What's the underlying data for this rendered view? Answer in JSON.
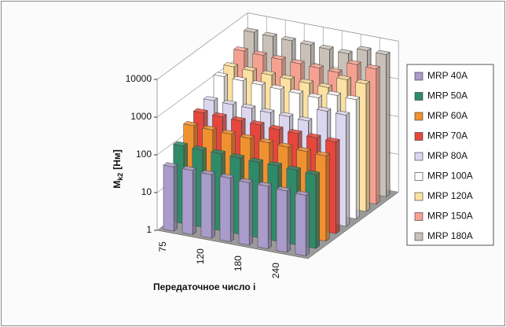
{
  "chart_data": {
    "type": "bar3d",
    "y_label": {
      "main": "M",
      "sub": "k2",
      "unit": "[Нм]"
    },
    "x_label": "Передаточное число i",
    "categories": [
      "75",
      null,
      "120",
      null,
      "180",
      null,
      "240",
      null
    ],
    "log_scale": true,
    "ylim": [
      1,
      10000
    ],
    "yticks": [
      1,
      10,
      100,
      1000,
      10000
    ],
    "grid": true,
    "legend": "right",
    "series": [
      {
        "name": "MRP 40A",
        "color": "#a99ccb",
        "values": [
          50,
          50,
          48,
          48,
          45,
          45,
          42,
          40
        ]
      },
      {
        "name": "MRP 50A",
        "color": "#2f8a68",
        "values": [
          115,
          110,
          110,
          105,
          100,
          100,
          95,
          90
        ]
      },
      {
        "name": "MRP 60A",
        "color": "#f0912f",
        "values": [
          250,
          240,
          230,
          220,
          210,
          200,
          190,
          180
        ]
      },
      {
        "name": "MRP 70A",
        "color": "#e6463b",
        "values": [
          350,
          340,
          330,
          320,
          300,
          290,
          280,
          270
        ]
      },
      {
        "name": "MRP 80A",
        "color": "#dcd7ee",
        "values": [
          470,
          460,
          450,
          430,
          420,
          400,
          900,
          880
        ]
      },
      {
        "name": "MRP 100A",
        "color": "#ffffff",
        "values": [
          1300,
          1250,
          1200,
          1150,
          1100,
          1050,
          1500,
          1450
        ]
      },
      {
        "name": "MRP 120A",
        "color": "#fde1a2",
        "values": [
          1500,
          1450,
          1400,
          1350,
          1300,
          1250,
          2500,
          2400
        ]
      },
      {
        "name": "MRP 150A",
        "color": "#f5a191",
        "values": [
          2500,
          2400,
          2300,
          2200,
          2100,
          2000,
          4000,
          3800
        ]
      },
      {
        "name": "MRP 180A",
        "color": "#c9c1b8",
        "values": [
          5000,
          4800,
          4600,
          4400,
          4200,
          4000,
          6000,
          5800
        ]
      }
    ]
  }
}
